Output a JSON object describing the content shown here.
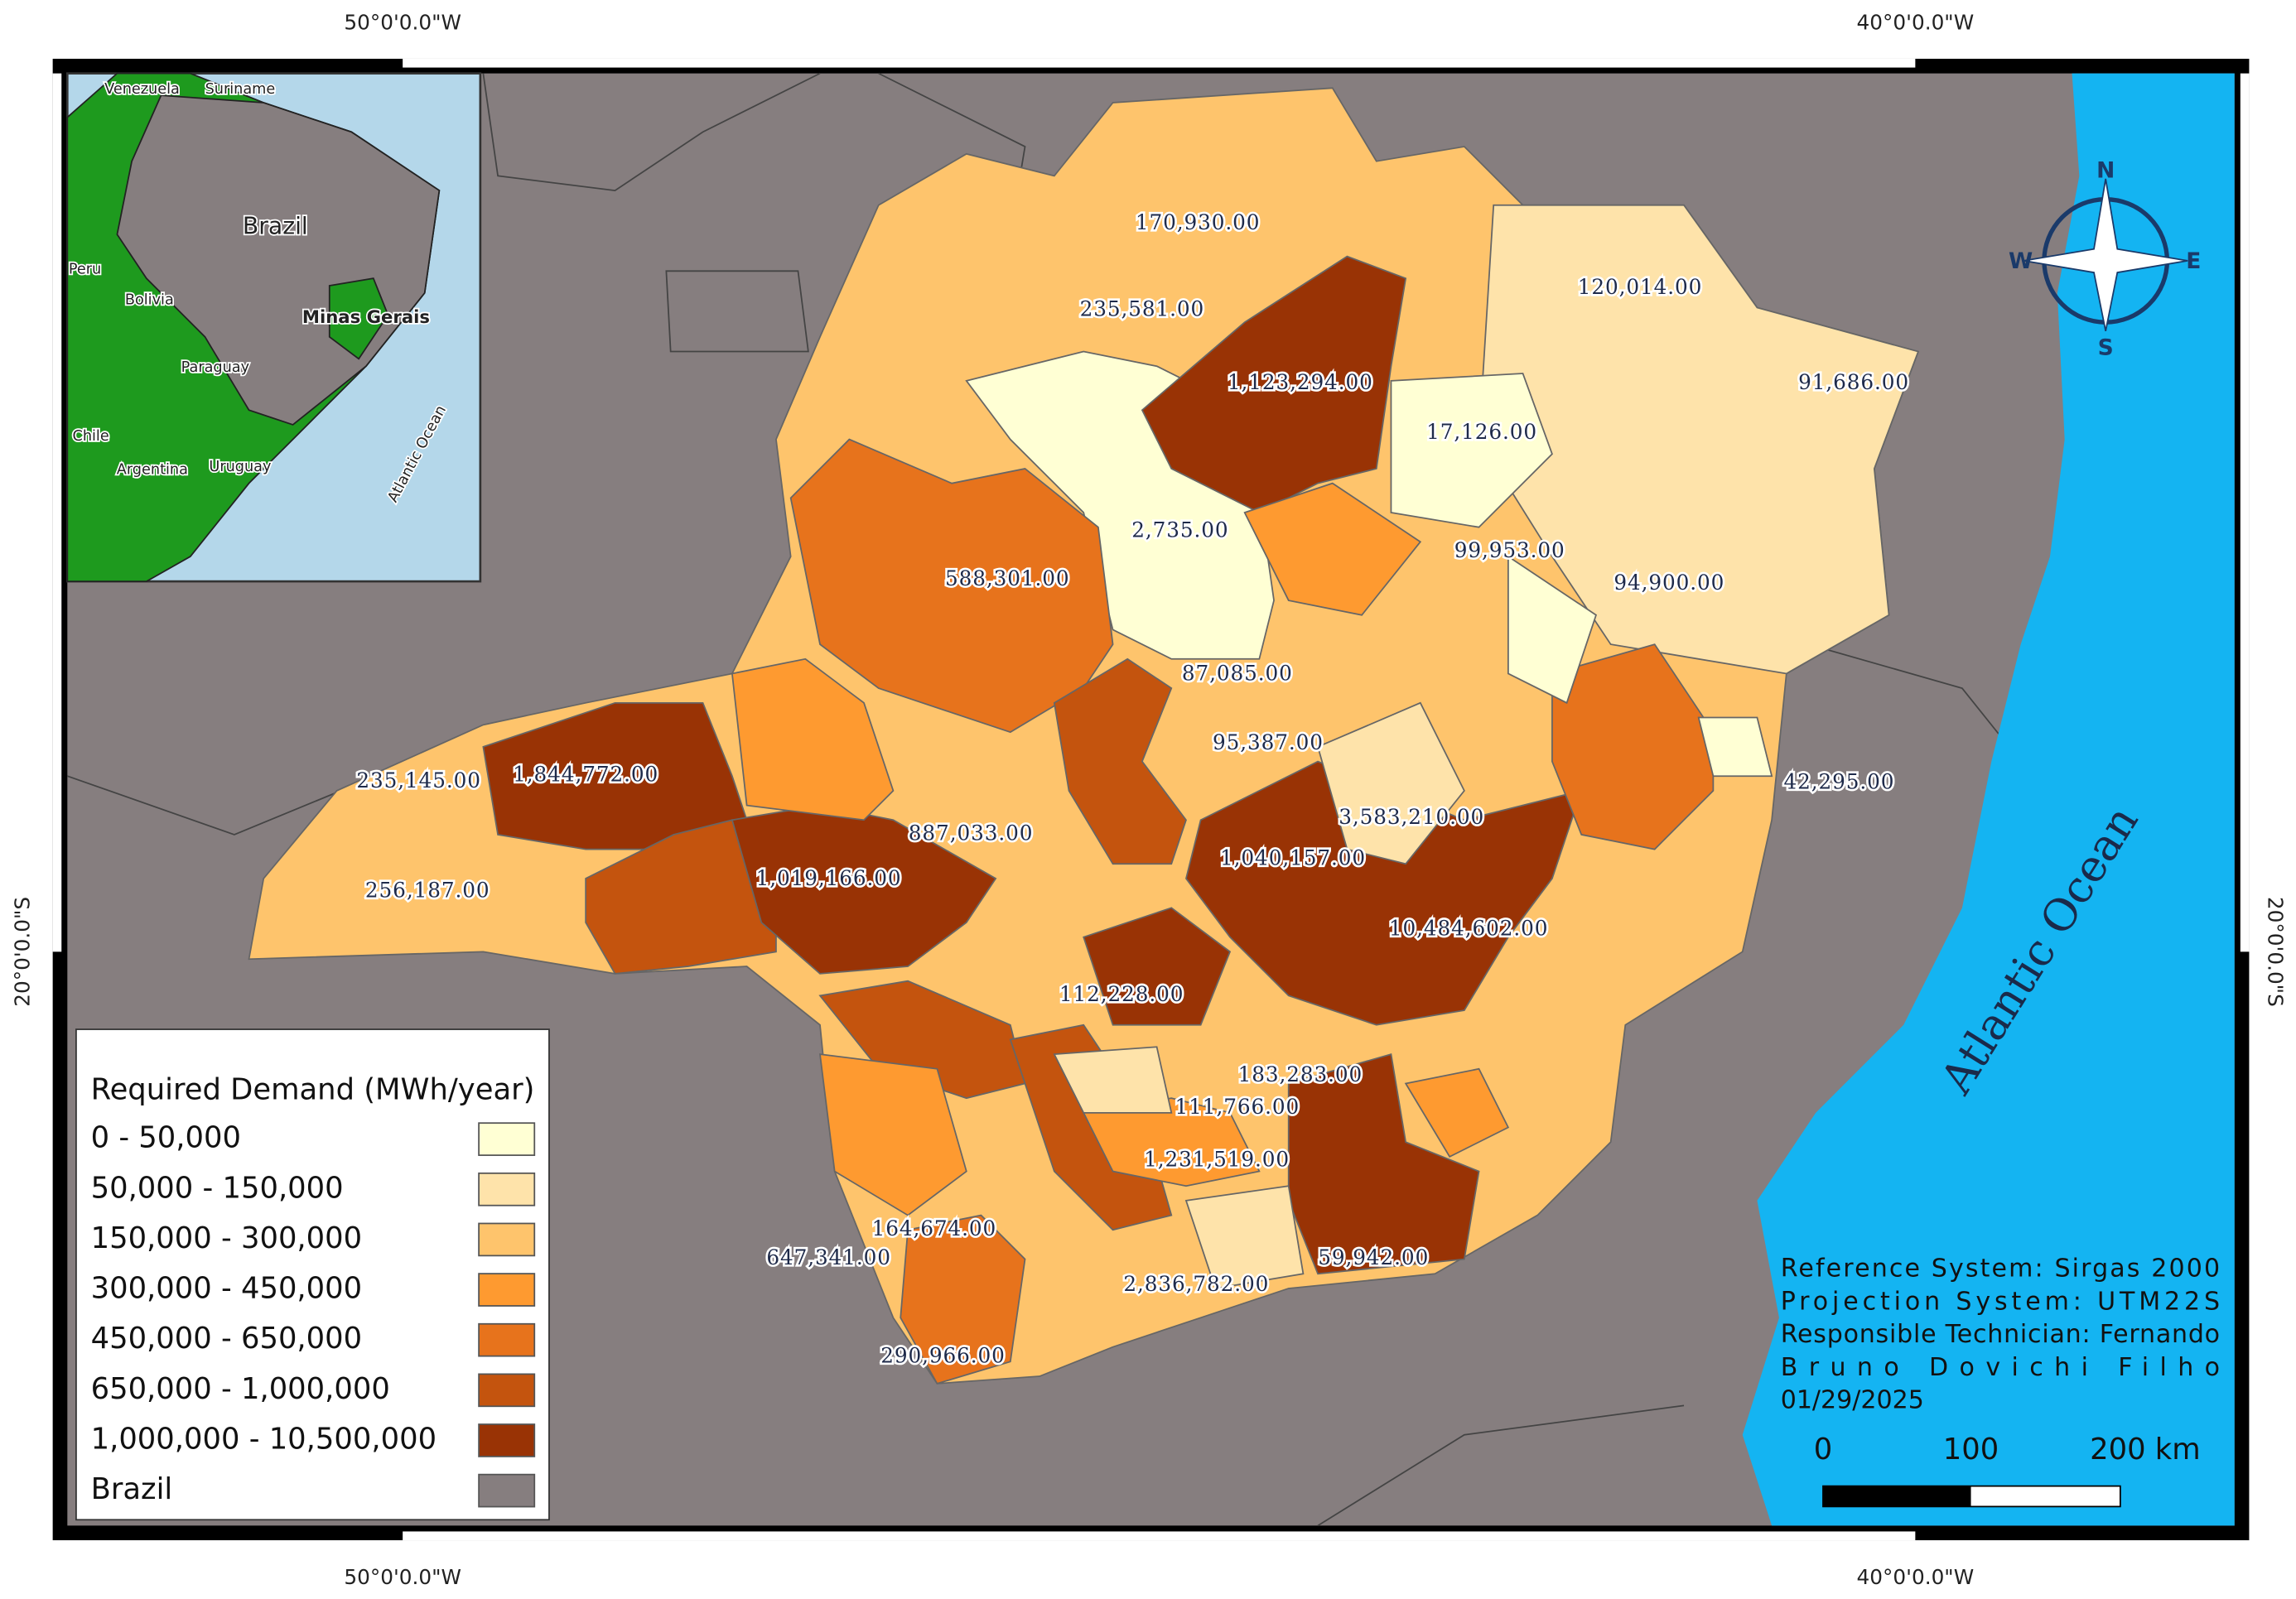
{
  "graticule": {
    "top": [
      "50°0'0.0\"W",
      "40°0'0.0\"W"
    ],
    "bottom": [
      "50°0'0.0\"W",
      "40°0'0.0\"W"
    ],
    "left": "20°0'0.0\"S",
    "right": "20°0'0.0\"S"
  },
  "inset": {
    "labels": [
      "Venezuela",
      "Suriname",
      "Brazil",
      "Peru",
      "Bolivia",
      "Minas Gerais",
      "Paraguay",
      "Chile",
      "Argentina",
      "Uruguay",
      "Atlantic Ocean"
    ]
  },
  "map": {
    "ocean_label": "Atlantic Ocean",
    "regions": [
      "170,930.00",
      "235,581.00",
      "1,123,294.00",
      "17,126.00",
      "120,014.00",
      "91,686.00",
      "2,735.00",
      "588,301.00",
      "99,953.00",
      "94,900.00",
      "87,085.00",
      "95,387.00",
      "42,295.00",
      "235,145.00",
      "1,844,772.00",
      "3,583,210.00",
      "887,033.00",
      "1,040,157.00",
      "1,019,166.00",
      "256,187.00",
      "10,484,602.00",
      "112,228.00",
      "183,283.00",
      "111,766.00",
      "1,231,519.00",
      "164,674.00",
      "647,341.00",
      "59,942.00",
      "2,836,782.00",
      "290,966.00"
    ]
  },
  "legend": {
    "title": "Required Demand (MWh/year)",
    "classes": [
      {
        "label": "0 - 50,000",
        "color": "#ffffd4"
      },
      {
        "label": "50,000 - 150,000",
        "color": "#fee3aa"
      },
      {
        "label": "150,000 - 300,000",
        "color": "#fec46c"
      },
      {
        "label": "300,000 - 450,000",
        "color": "#fe9a30"
      },
      {
        "label": "450,000 - 650,000",
        "color": "#e7731c"
      },
      {
        "label": "650,000 - 1,000,000",
        "color": "#c4540e"
      },
      {
        "label": "1,000,000 - 10,500,000",
        "color": "#993305"
      },
      {
        "label": "Brazil",
        "color": "#867e7f"
      }
    ]
  },
  "compass": {
    "n": "N",
    "s": "S",
    "e": "E",
    "w": "W"
  },
  "credits": [
    "Reference System: Sirgas 2000",
    "Projection System: UTM22S",
    "Responsible Technician: Fernando",
    "Bruno Dovichi Filho",
    "01/29/2025"
  ],
  "scale_bar": [
    "0",
    "100",
    "200 km"
  ]
}
